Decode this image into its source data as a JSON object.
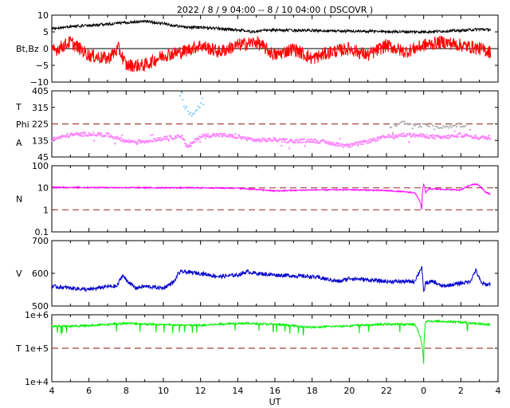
{
  "title": "2022 /  8 /  9   04:00  --   8 / 10   04:00 ( DSCOVR )",
  "colors": {
    "bt": "#000000",
    "bz": "#ff0000",
    "theta": "#87cefa",
    "phi_away": "#ff80ff",
    "phi_toward": "#b0b0b0",
    "density": "#ff00ff",
    "speed": "#0000cc",
    "temperature": "#00ee00",
    "ref_line": "#a04040"
  },
  "chart_data": [
    {
      "type": "line",
      "panel": "magnetic_field",
      "ylabel": "Bt,Bz",
      "ylim": [
        -10,
        10
      ],
      "yticks": [
        "10",
        "5",
        "0",
        "−5",
        "−10"
      ],
      "zero_line": true,
      "series": [
        {
          "key": "bt",
          "mean": 5.4,
          "noise": 0.4,
          "x": [
            4.0,
            5.0,
            6.0,
            7.0,
            8.0,
            9.0,
            10.0,
            11.0,
            12.0,
            13.0,
            14.0,
            14.8,
            15.3,
            16.0,
            18.0,
            20.0,
            22.0,
            24.0,
            25.0,
            26.0,
            27.0,
            27.6
          ],
          "y": [
            6.0,
            6.6,
            7.0,
            7.3,
            7.8,
            8.2,
            7.5,
            6.5,
            6.3,
            6.0,
            5.6,
            5.0,
            5.4,
            5.5,
            5.4,
            5.2,
            5.1,
            5.0,
            5.2,
            5.4,
            5.8,
            5.6
          ]
        },
        {
          "key": "bz",
          "mean": -0.8,
          "noise": 2.0,
          "x": [
            4.0,
            5.0,
            6.0,
            7.0,
            7.6,
            8.0,
            9.0,
            10.0,
            11.0,
            12.0,
            13.0,
            14.0,
            15.0,
            16.0,
            17.0,
            18.0,
            19.0,
            20.0,
            21.0,
            22.0,
            23.0,
            24.0,
            25.0,
            26.0,
            27.0,
            27.6
          ],
          "y": [
            -1.0,
            2.0,
            -2.0,
            -3.0,
            0.0,
            -5.0,
            -5.0,
            -2.0,
            -1.0,
            1.0,
            -1.0,
            1.0,
            2.0,
            -2.0,
            0.0,
            -3.0,
            -1.0,
            0.0,
            -2.0,
            1.0,
            -1.0,
            1.0,
            2.0,
            1.0,
            0.0,
            -1.0
          ]
        }
      ]
    },
    {
      "type": "scatter",
      "panel": "direction",
      "ylabels": [
        "T",
        "Phi",
        "A"
      ],
      "ylim": [
        45,
        405
      ],
      "yticks": [
        "405",
        "315",
        "225",
        "135",
        "45"
      ],
      "ref_lines": [
        225
      ],
      "series": [
        {
          "key": "phi_away",
          "noise": 10,
          "x": [
            4.0,
            5.0,
            6.0,
            7.0,
            8.0,
            9.0,
            10.0,
            11.0,
            11.3,
            12.0,
            13.0,
            14.0,
            15.0,
            16.0,
            17.0,
            18.0,
            19.0,
            20.0,
            21.0,
            22.0,
            23.0,
            24.0,
            25.0,
            26.0,
            27.0,
            27.6
          ],
          "y": [
            140,
            165,
            170,
            165,
            130,
            130,
            145,
            160,
            95,
            160,
            165,
            155,
            135,
            140,
            130,
            135,
            120,
            105,
            130,
            155,
            165,
            160,
            150,
            165,
            150,
            150
          ]
        },
        {
          "key": "theta",
          "noise": 20,
          "x": [
            10.9,
            11.0,
            11.1,
            11.3,
            11.6,
            12.0,
            12.1,
            12.2
          ],
          "y": [
            380,
            395,
            340,
            300,
            280,
            330,
            350,
            310
          ]
        },
        {
          "key": "phi_toward",
          "noise": 10,
          "x": [
            22.2,
            22.6,
            23.0,
            23.6,
            24.4,
            25.0,
            25.6,
            26.0,
            26.3
          ],
          "y": [
            210,
            225,
            235,
            215,
            220,
            205,
            215,
            220,
            210
          ]
        }
      ]
    },
    {
      "type": "line",
      "panel": "density",
      "ylabel": "N",
      "scale": "log",
      "ylim": [
        0.1,
        100
      ],
      "yticks": [
        "100",
        "10",
        "1",
        "0.1"
      ],
      "ref_lines": [
        10,
        1
      ],
      "series": [
        {
          "key": "density",
          "log_noise": 0.03,
          "x": [
            4.0,
            8.0,
            12.0,
            14.0,
            16.0,
            18.0,
            20.0,
            22.0,
            23.5,
            23.9,
            24.0,
            24.1,
            24.3,
            25.0,
            26.0,
            26.7,
            26.9,
            27.3,
            27.6
          ],
          "y": [
            10.5,
            10.2,
            10.0,
            9.6,
            7.2,
            8.0,
            8.2,
            7.5,
            6.0,
            1.0,
            15.0,
            6.0,
            9.0,
            8.5,
            8.0,
            15.0,
            14.0,
            6.5,
            5.0
          ]
        }
      ]
    },
    {
      "type": "line",
      "panel": "speed",
      "ylabel": "V",
      "ylim": [
        500,
        700
      ],
      "yticks": [
        "700",
        "600",
        "500"
      ],
      "series": [
        {
          "key": "speed",
          "noise": 6,
          "x": [
            4.0,
            5.0,
            6.0,
            7.0,
            7.5,
            7.8,
            8.0,
            8.5,
            9.0,
            10.0,
            10.6,
            10.8,
            11.0,
            12.0,
            13.0,
            14.0,
            14.5,
            15.0,
            16.0,
            18.0,
            19.5,
            20.0,
            22.0,
            23.5,
            23.9,
            24.0,
            24.1,
            24.5,
            25.0,
            26.0,
            26.5,
            26.8,
            27.1,
            27.4,
            27.6
          ],
          "y": [
            560,
            555,
            550,
            560,
            560,
            595,
            580,
            555,
            560,
            555,
            575,
            600,
            605,
            600,
            590,
            595,
            605,
            600,
            595,
            590,
            575,
            585,
            575,
            575,
            620,
            540,
            570,
            575,
            560,
            570,
            575,
            610,
            570,
            565,
            570
          ]
        }
      ]
    },
    {
      "type": "line",
      "panel": "temperature",
      "ylabel": "T",
      "scale": "log",
      "ylim": [
        10000,
        1000000
      ],
      "yticks": [
        "1e+6",
        "1e+5",
        "1e+4"
      ],
      "ref_lines": [
        100000
      ],
      "series": [
        {
          "key": "temperature",
          "log_noise": 0.03,
          "x": [
            4.0,
            6.0,
            8.0,
            10.0,
            12.0,
            14.0,
            16.0,
            18.0,
            20.0,
            22.0,
            23.5,
            24.0,
            24.1,
            24.2,
            26.0,
            27.6
          ],
          "y": [
            450000,
            470000,
            560000,
            500000,
            480000,
            560000,
            520000,
            420000,
            470000,
            520000,
            520000,
            35000,
            600000,
            650000,
            600000,
            500000
          ]
        }
      ]
    }
  ],
  "x_axis": {
    "label": "UT",
    "ticks": [
      "4",
      "6",
      "8",
      "10",
      "12",
      "14",
      "16",
      "18",
      "20",
      "22",
      "0",
      "2",
      "4"
    ]
  }
}
